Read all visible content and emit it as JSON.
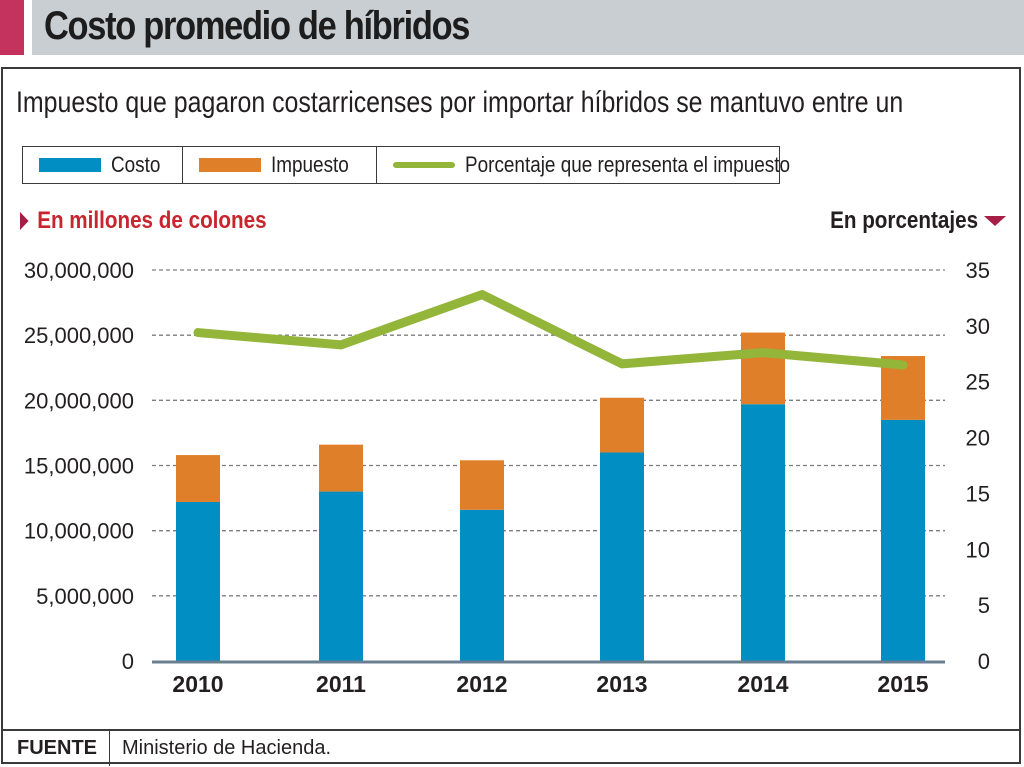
{
  "header": {
    "title": "Costo promedio de híbridos",
    "accent_color": "#c4325e",
    "bar_color": "#c9ced3"
  },
  "subtitle": "Impuesto que pagaron costarricenses por importar híbridos se mantuvo entre un",
  "legend": {
    "items": [
      {
        "label": "Costo",
        "color": "#008ec3",
        "kind": "bar"
      },
      {
        "label": "Impuesto",
        "color": "#e07f2a",
        "kind": "bar"
      },
      {
        "label": "Porcentaje que representa el impuesto",
        "color": "#93b53a",
        "kind": "line"
      }
    ]
  },
  "axis_titles": {
    "left": "En millones de colones",
    "right": "En porcentajes"
  },
  "source": {
    "label": "FUENTE",
    "text": "Ministerio de Hacienda."
  },
  "chart_data": {
    "type": "bar",
    "stacked": true,
    "title": "Costo promedio de híbridos",
    "subtitle": "Impuesto que pagaron costarricenses por importar híbridos se mantuvo entre un",
    "categories": [
      "2010",
      "2011",
      "2012",
      "2013",
      "2014",
      "2015"
    ],
    "series": [
      {
        "name": "Costo",
        "type": "bar",
        "axis": "left",
        "color": "#008ec3",
        "values": [
          12200000,
          13000000,
          11600000,
          16000000,
          19700000,
          18500000
        ]
      },
      {
        "name": "Impuesto",
        "type": "bar",
        "axis": "left",
        "color": "#e07f2a",
        "values": [
          3600000,
          3600000,
          3800000,
          4200000,
          5500000,
          4900000
        ]
      },
      {
        "name": "Porcentaje que representa el impuesto",
        "type": "line",
        "axis": "right",
        "color": "#93b53a",
        "values": [
          29.4,
          28.3,
          32.8,
          26.6,
          27.6,
          26.5
        ]
      }
    ],
    "ylabel": "En millones de colones",
    "y2label": "En porcentajes",
    "ylim": [
      0,
      30000000
    ],
    "y2lim": [
      0,
      35
    ],
    "yticks": [
      "30,000,000",
      "25,000,000",
      "20,000,000",
      "15,000,000",
      "10,000,000",
      "5,000,000",
      "0"
    ],
    "ytick_values": [
      30000000,
      25000000,
      20000000,
      15000000,
      10000000,
      5000000,
      0
    ],
    "y2ticks": [
      "35",
      "30",
      "25",
      "20",
      "15",
      "10",
      "5",
      "0"
    ],
    "y2tick_values": [
      35,
      30,
      25,
      20,
      15,
      10,
      5,
      0
    ],
    "grid": true,
    "legend_position": "top"
  }
}
